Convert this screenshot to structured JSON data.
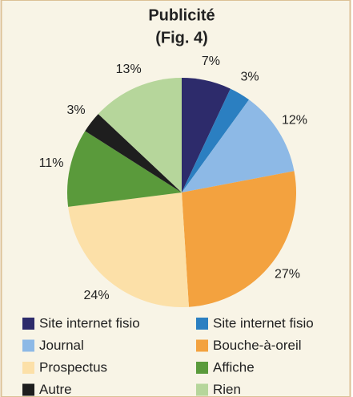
{
  "chart_data": {
    "type": "pie",
    "title": "Publicité",
    "subtitle": "(Fig. 4)",
    "categories": [
      "Site internet fisio",
      "Site internet fisio",
      "Journal",
      "Bouche-à-oreil",
      "Prospectus",
      "Affiche",
      "Autre",
      "Rien"
    ],
    "values": [
      7,
      3,
      12,
      27,
      24,
      11,
      3,
      13
    ],
    "value_labels": [
      "7%",
      "3%",
      "12%",
      "27%",
      "24%",
      "11%",
      "3%",
      "13%"
    ],
    "colors": [
      "#2d2b6b",
      "#2b7fc1",
      "#8db9e6",
      "#f3a23f",
      "#fce0a8",
      "#5a9a3b",
      "#1e1e1e",
      "#b6d69b"
    ]
  }
}
